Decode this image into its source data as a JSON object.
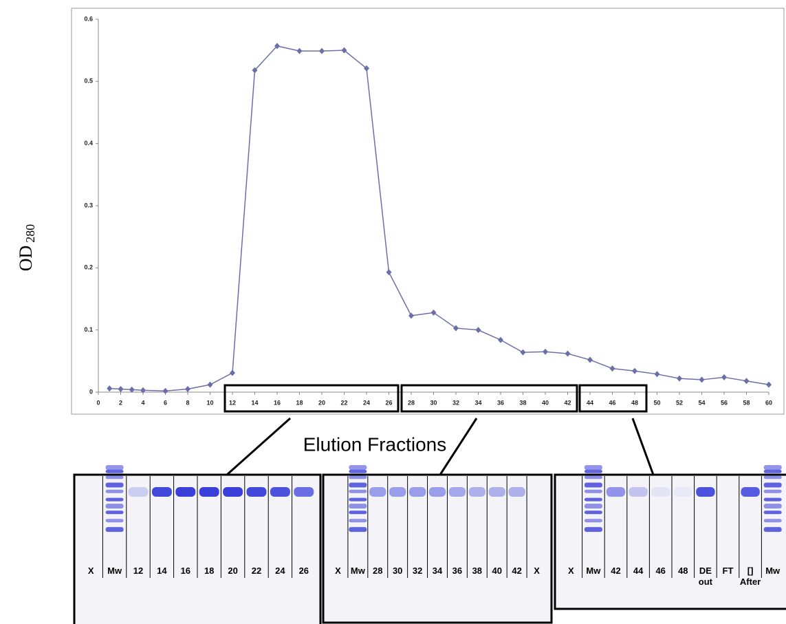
{
  "chart_data": {
    "type": "line",
    "y_label": "OD",
    "y_label_subscript": "280",
    "x_label": "Elution Fractions",
    "x": [
      1,
      2,
      3,
      4,
      6,
      8,
      10,
      12,
      14,
      16,
      18,
      20,
      22,
      24,
      26,
      28,
      30,
      32,
      34,
      36,
      38,
      40,
      42,
      44,
      46,
      48,
      50,
      52,
      54,
      56,
      58,
      60
    ],
    "series": [
      {
        "color": "#6a6fa8",
        "values": [
          0.006,
          0.005,
          0.004,
          0.003,
          0.002,
          0.005,
          0.012,
          0.031,
          0.518,
          0.557,
          0.549,
          0.549,
          0.55,
          0.521,
          0.193,
          0.123,
          0.128,
          0.103,
          0.1,
          0.084,
          0.064,
          0.065,
          0.062,
          0.052,
          0.038,
          0.034,
          0.029,
          0.022,
          0.02,
          0.024,
          0.018,
          0.012
        ]
      }
    ],
    "xlim": [
      0,
      60
    ],
    "xticks": [
      0,
      2,
      4,
      6,
      8,
      10,
      12,
      14,
      16,
      18,
      20,
      22,
      24,
      26,
      28,
      30,
      32,
      34,
      36,
      38,
      40,
      42,
      44,
      46,
      48,
      50,
      52,
      54,
      56,
      58,
      60
    ],
    "ylim": [
      0,
      0.6
    ],
    "yticks": [
      0,
      0.1,
      0.2,
      0.3,
      0.4,
      0.5,
      0.6
    ]
  },
  "gels": [
    {
      "lanes": [
        [
          "X"
        ],
        [
          "Mw"
        ],
        [
          "12"
        ],
        [
          "14"
        ],
        [
          "16"
        ],
        [
          "18"
        ],
        [
          "20"
        ],
        [
          "22"
        ],
        [
          "24"
        ],
        [
          "26"
        ]
      ]
    },
    {
      "lanes": [
        [
          "X"
        ],
        [
          "Mw"
        ],
        [
          "28"
        ],
        [
          "30"
        ],
        [
          "32"
        ],
        [
          "34"
        ],
        [
          "36"
        ],
        [
          "38"
        ],
        [
          "40"
        ],
        [
          "42"
        ],
        [
          "X"
        ]
      ]
    },
    {
      "lanes": [
        [
          "X"
        ],
        [
          "Mw"
        ],
        [
          "42"
        ],
        [
          "44"
        ],
        [
          "46"
        ],
        [
          "48"
        ],
        [
          "DE",
          "out"
        ],
        [
          "FT"
        ],
        [
          "[]",
          "After"
        ],
        [
          "Mw"
        ]
      ]
    }
  ]
}
